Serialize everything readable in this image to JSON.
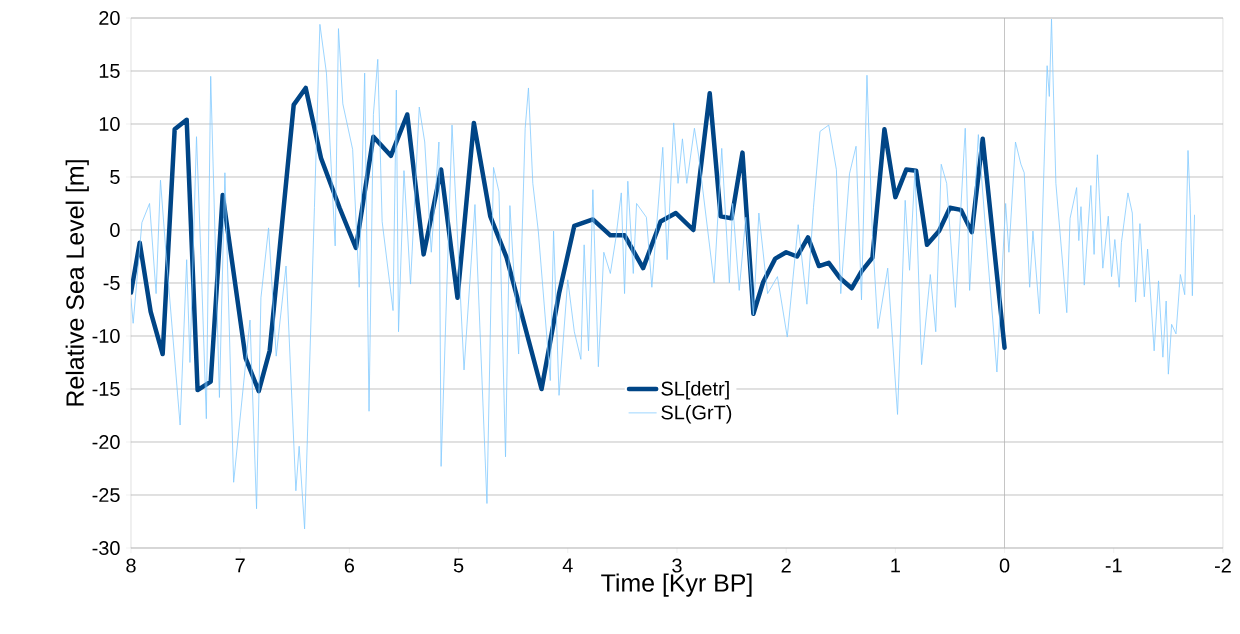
{
  "chart_data": {
    "type": "line",
    "xlabel": "Time [Kyr BP]",
    "ylabel": "Relative Sea Level [m]",
    "xlim": [
      8,
      -2
    ],
    "xticks": [
      8,
      7,
      6,
      5,
      4,
      3,
      2,
      1,
      0,
      -1,
      -2
    ],
    "ylim": [
      -30,
      20
    ],
    "yticks": [
      -30,
      -25,
      -20,
      -15,
      -10,
      -5,
      0,
      5,
      10,
      15,
      20
    ],
    "grid": "y",
    "legend": "bottom",
    "line_style": "solid",
    "marker": "none",
    "ref_lines": [
      {
        "axis": "x",
        "value": 0,
        "color": "#b3b3b3"
      }
    ],
    "series": [
      {
        "name": "SL[detr]",
        "color": "#004586",
        "x": [
          8,
          7.92,
          7.82,
          7.71,
          7.6,
          7.49,
          7.39,
          7.27,
          7.16,
          6.95,
          6.83,
          6.73,
          6.51,
          6.4,
          6.26,
          6.09,
          5.94,
          5.78,
          5.62,
          5.47,
          5.32,
          5.16,
          5.01,
          4.86,
          4.71,
          4.56,
          4.24,
          4.08,
          3.94,
          3.77,
          3.61,
          3.48,
          3.31,
          3.15,
          3.01,
          2.85,
          2.7,
          2.6,
          2.5,
          2.4,
          2.3,
          2.21,
          2.1,
          2.0,
          1.9,
          1.8,
          1.7,
          1.61,
          1.51,
          1.4,
          1.31,
          1.21,
          1.1,
          1.0,
          0.9,
          0.81,
          0.71,
          0.6,
          0.5,
          0.4,
          0.3,
          0.2,
          0.0
        ],
        "values": [
          -5.9,
          -1.2,
          -7.7,
          -11.7,
          9.5,
          10.4,
          -15.1,
          -14.3,
          3.3,
          -12.1,
          -15.2,
          -11.4,
          11.8,
          13.4,
          6.8,
          2.1,
          -1.7,
          8.8,
          7.0,
          10.9,
          -2.3,
          5.7,
          -6.4,
          10.1,
          1.3,
          -2.6,
          -15.0,
          -6.0,
          0.4,
          1.0,
          -0.5,
          -0.5,
          -3.6,
          0.8,
          1.6,
          0.0,
          12.9,
          1.3,
          1.1,
          7.3,
          -7.9,
          -4.9,
          -2.7,
          -2.1,
          -2.5,
          -0.7,
          -3.4,
          -3.1,
          -4.5,
          -5.5,
          -3.9,
          -2.6,
          9.5,
          3.1,
          5.7,
          5.6,
          -1.4,
          -0.1,
          2.1,
          1.9,
          -0.2,
          8.6,
          -11.1
        ]
      },
      {
        "name": "SL(GrT)",
        "color": "#83caff",
        "x": [
          8,
          7.98,
          7.9,
          7.83,
          7.77,
          7.73,
          7.68,
          7.55,
          7.49,
          7.46,
          7.4,
          7.36,
          7.31,
          7.27,
          7.19,
          7.14,
          7.06,
          6.91,
          6.85,
          6.81,
          6.74,
          6.67,
          6.58,
          6.49,
          6.46,
          6.41,
          6.32,
          6.27,
          6.21,
          6.13,
          6.1,
          6.06,
          5.97,
          5.91,
          5.86,
          5.82,
          5.78,
          5.74,
          5.7,
          5.6,
          5.57,
          5.55,
          5.5,
          5.44,
          5.36,
          5.31,
          5.25,
          5.18,
          5.16,
          5.06,
          4.95,
          4.85,
          4.74,
          4.68,
          4.63,
          4.57,
          4.53,
          4.45,
          4.39,
          4.36,
          4.32,
          4.27,
          4.16,
          4.13,
          4.08,
          4.0,
          3.94,
          3.88,
          3.85,
          3.81,
          3.77,
          3.72,
          3.67,
          3.61,
          3.56,
          3.51,
          3.48,
          3.45,
          3.4,
          3.37,
          3.28,
          3.23,
          3.13,
          3.09,
          3.03,
          2.99,
          2.95,
          2.91,
          2.84,
          2.8,
          2.66,
          2.59,
          2.52,
          2.49,
          2.43,
          2.37,
          2.3,
          2.25,
          2.17,
          2.08,
          1.99,
          1.89,
          1.81,
          1.75,
          1.69,
          1.61,
          1.54,
          1.5,
          1.42,
          1.36,
          1.31,
          1.26,
          1.21,
          1.16,
          1.07,
          0.98,
          0.91,
          0.87,
          0.82,
          0.76,
          0.68,
          0.63,
          0.58,
          0.53,
          0.45,
          0.36,
          0.32,
          0.24,
          0.17,
          0.07,
          -0.01,
          -0.04,
          -0.1,
          -0.15,
          -0.18,
          -0.23,
          -0.26,
          -0.32,
          -0.39,
          -0.41,
          -0.43,
          -0.47,
          -0.57,
          -0.6,
          -0.66,
          -0.68,
          -0.7,
          -0.73,
          -0.79,
          -0.82,
          -0.85,
          -0.9,
          -0.95,
          -0.98,
          -1.01,
          -1.05,
          -1.07,
          -1.13,
          -1.17,
          -1.2,
          -1.24,
          -1.28,
          -1.31,
          -1.37,
          -1.41,
          -1.45,
          -1.48,
          -1.5,
          -1.53,
          -1.57,
          -1.61,
          -1.65,
          -1.68,
          -1.7,
          -1.72,
          -1.74
        ],
        "values": [
          -6.5,
          -8.8,
          0.7,
          2.5,
          -6.0,
          4.7,
          -2.1,
          -18.4,
          -2.8,
          -12.5,
          8.8,
          -2.4,
          -17.8,
          14.5,
          -15.8,
          5.4,
          -23.8,
          -8.5,
          -26.3,
          -6.4,
          0.2,
          -11.9,
          -3.4,
          -24.6,
          -20.4,
          -28.2,
          2.1,
          19.4,
          14.8,
          -1.5,
          19.0,
          11.9,
          7.6,
          -5.4,
          14.8,
          -17.1,
          10.9,
          16.1,
          0.8,
          -7.6,
          13.2,
          -9.6,
          5.6,
          -5.1,
          11.6,
          8.3,
          -2.1,
          8.3,
          -22.3,
          9.9,
          -13.2,
          2.4,
          -25.8,
          5.9,
          3.6,
          -21.4,
          2.3,
          -11.7,
          9.6,
          13.4,
          4.4,
          -0.1,
          -14.2,
          -0.1,
          -15.6,
          -4.7,
          -9.6,
          -12.2,
          -1.4,
          -11.4,
          3.8,
          -12.9,
          -2.1,
          -4.1,
          -0.8,
          3.5,
          -6.0,
          4.6,
          -4.1,
          2.5,
          1.2,
          -5.4,
          7.8,
          -2.8,
          10.1,
          4.4,
          8.6,
          4.4,
          9.6,
          6.9,
          -5.0,
          7.7,
          -5.0,
          2.5,
          -5.7,
          1.2,
          -8.0,
          1.6,
          -6.0,
          -4.4,
          -10.1,
          0.5,
          -7.0,
          2.1,
          9.3,
          9.9,
          5.7,
          -6.0,
          5.3,
          7.9,
          -6.6,
          14.6,
          -0.5,
          -9.3,
          -3.6,
          -17.4,
          2.8,
          -3.8,
          5.7,
          -12.7,
          -4.2,
          -9.6,
          6.2,
          4.4,
          -7.3,
          9.6,
          -5.7,
          9.0,
          -0.5,
          -13.4,
          2.5,
          -2.1,
          8.3,
          6.2,
          5.4,
          -5.4,
          -0.1,
          -7.9,
          15.5,
          12.6,
          19.9,
          4.4,
          -7.8,
          1.1,
          4.0,
          -1.0,
          2.2,
          -5.2,
          4.2,
          -2.3,
          7.1,
          -3.6,
          1.3,
          -4.4,
          -0.9,
          -5.4,
          -1.2,
          3.5,
          1.6,
          -6.8,
          0.6,
          -6.3,
          -1.8,
          -11.4,
          -4.8,
          -12.0,
          -6.7,
          -13.6,
          -8.9,
          -9.8,
          -4.2,
          -6.1,
          7.5,
          2.5,
          -6.2,
          1.4
        ]
      }
    ]
  }
}
